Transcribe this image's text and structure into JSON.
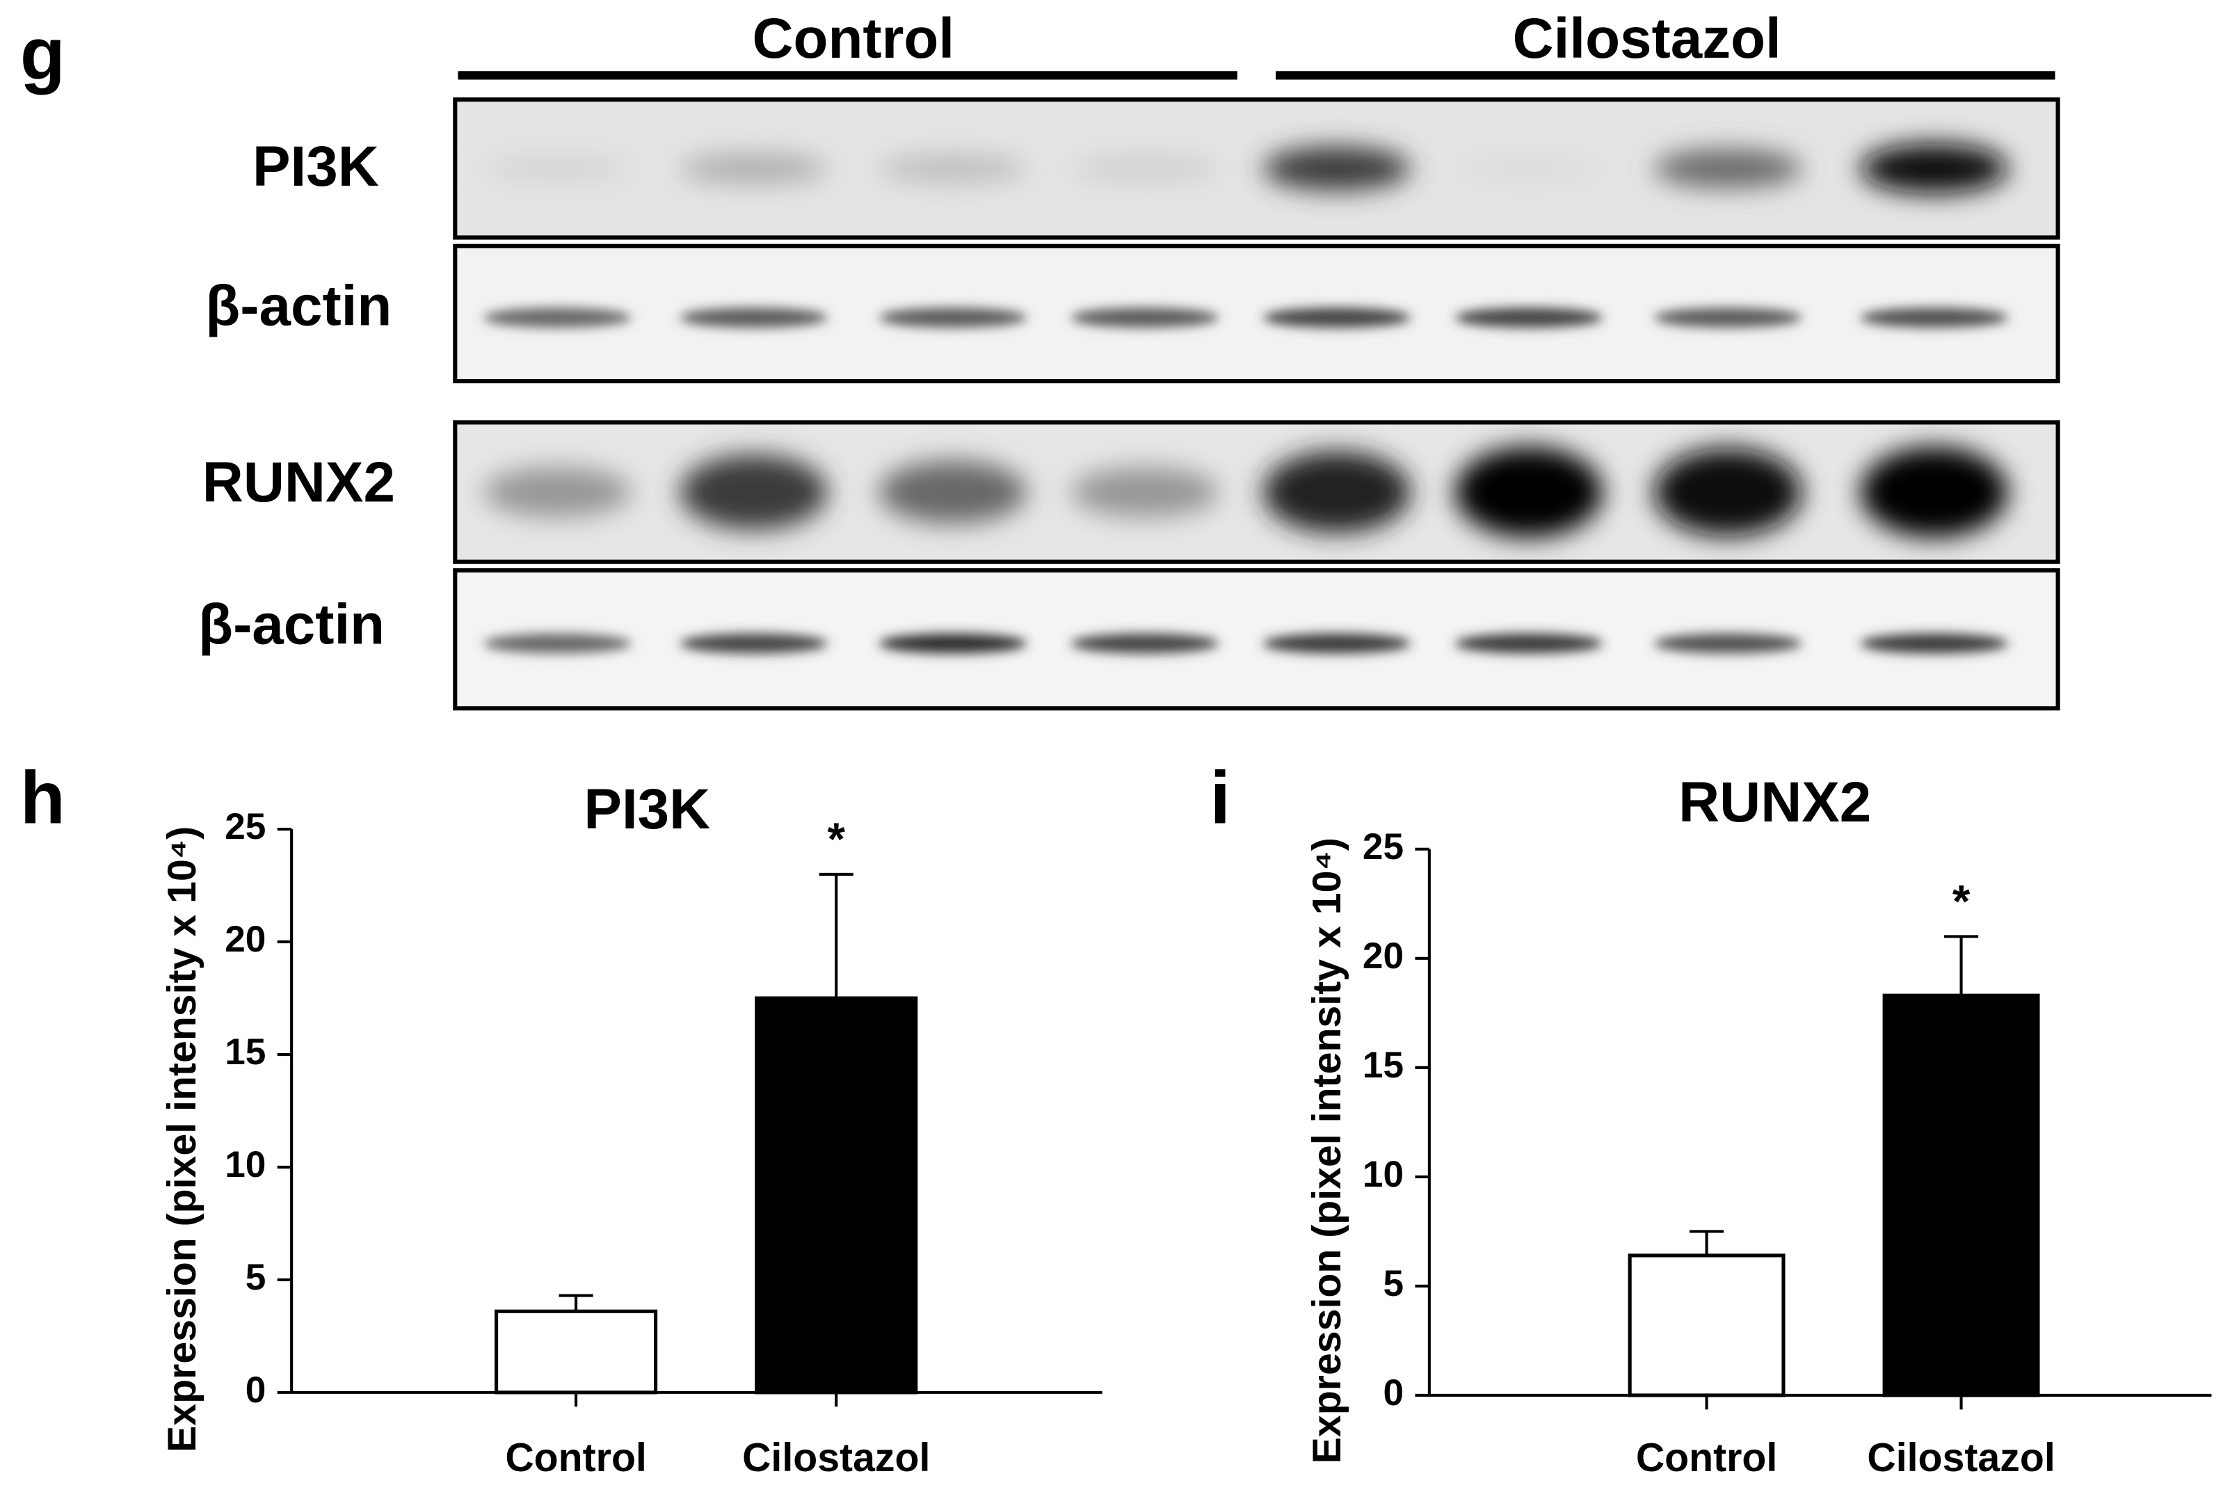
{
  "blot": {
    "panel_label": "g",
    "groups": [
      "Control",
      "Cilostazol"
    ],
    "rows": [
      "PI3K",
      "β-actin",
      "RUNX2",
      "β-actin"
    ]
  },
  "chart_data": [
    {
      "type": "bar",
      "panel_label": "h",
      "title": "PI3K",
      "y_label": "Expression (pixel intensity x 10⁴)",
      "categories": [
        "Control",
        "Cilostazol"
      ],
      "values": [
        3.6,
        17.5
      ],
      "errors": [
        0.7,
        5.5
      ],
      "colors": [
        "#ffffff",
        "#000000"
      ],
      "edge_color": "#000000",
      "significance_labels": [
        null,
        "*"
      ],
      "ylim": [
        0,
        25
      ],
      "yticks": [
        0,
        5,
        10,
        15,
        20,
        25
      ]
    },
    {
      "type": "bar",
      "panel_label": "i",
      "title": "RUNX2",
      "y_label": "Expression (pixel intensity x 10⁴)",
      "categories": [
        "Control",
        "Cilostazol"
      ],
      "values": [
        6.4,
        18.3
      ],
      "errors": [
        1.1,
        2.7
      ],
      "colors": [
        "#ffffff",
        "#000000"
      ],
      "edge_color": "#000000",
      "significance_labels": [
        null,
        "*"
      ],
      "ylim": [
        0,
        25
      ],
      "yticks": [
        0,
        5,
        10,
        15,
        20,
        25
      ]
    }
  ]
}
